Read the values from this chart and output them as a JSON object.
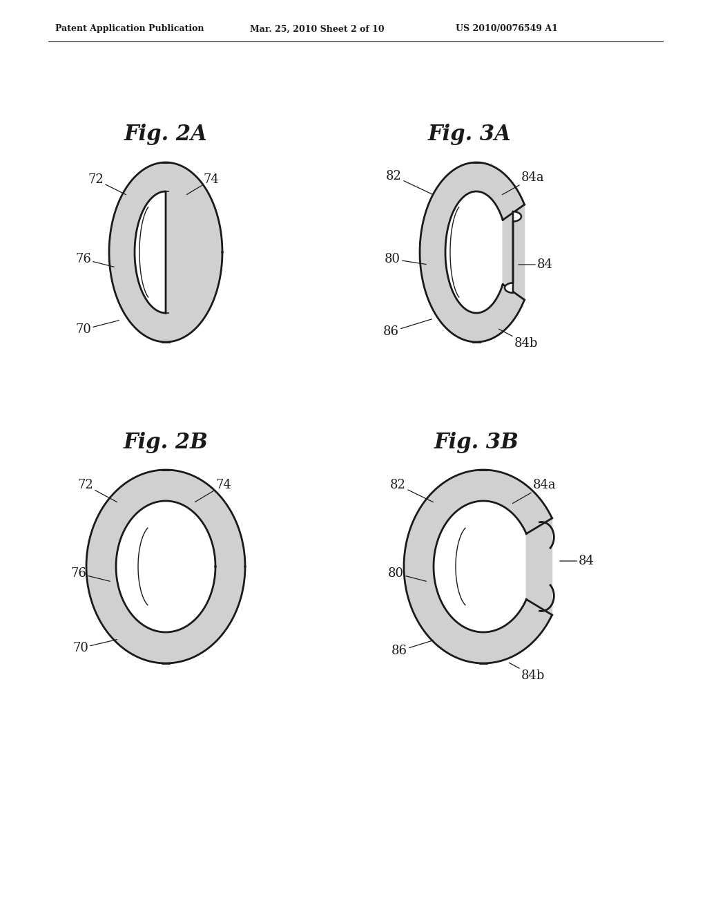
{
  "bg_color": "#ffffff",
  "header_text": "Patent Application Publication",
  "header_date": "Mar. 25, 2010 Sheet 2 of 10",
  "header_patent": "US 2010/0076549 A1",
  "fig2A_title": "Fig. 2A",
  "fig2B_title": "Fig. 2B",
  "fig3A_title": "Fig. 3A",
  "fig3B_title": "Fig. 3B",
  "line_color": "#1a1a1a",
  "line_width": 2.0,
  "label_fontsize": 13,
  "title_fontsize": 22
}
